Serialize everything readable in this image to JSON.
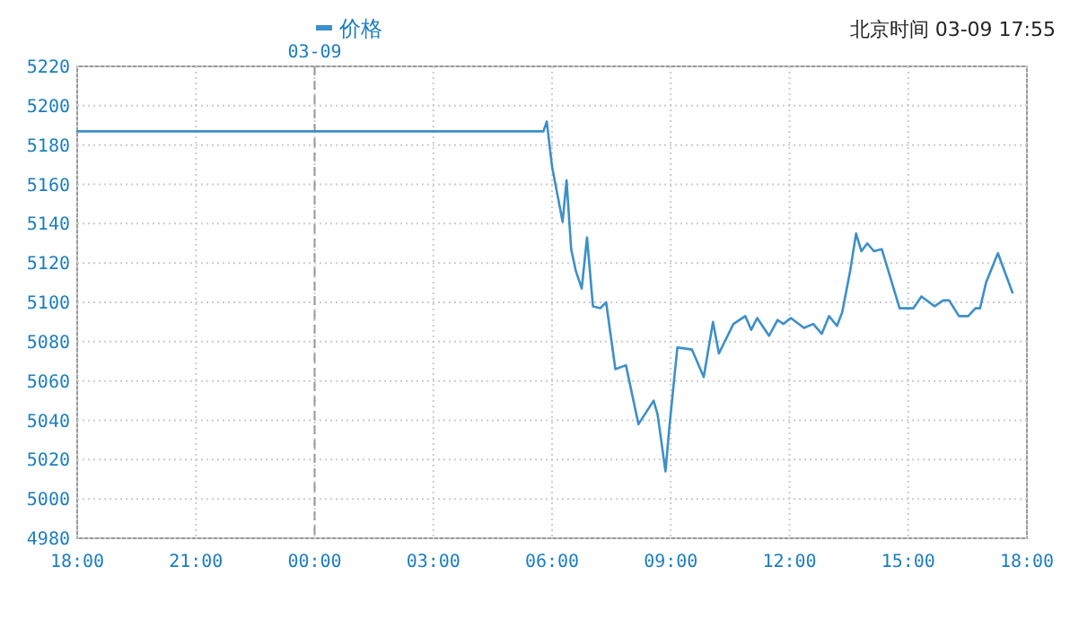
{
  "chart_data": {
    "type": "line",
    "annotations": [
      "北京时间 03-09 17:55"
    ],
    "x": [
      "--03-08T18:00",
      "--03-09T05:47",
      "--03-09T05:52",
      "--03-09T06:00",
      "--03-09T06:16",
      "--03-09T06:22",
      "--03-09T06:29",
      "--03-09T06:36",
      "--03-09T06:45",
      "--03-09T06:53",
      "--03-09T07:02",
      "--03-09T07:13",
      "--03-09T07:22",
      "--03-09T07:36",
      "--03-09T07:52",
      "--03-09T08:11",
      "--03-09T08:34",
      "--03-09T08:40",
      "--03-09T08:52",
      "--03-09T08:58",
      "--03-09T09:10",
      "--03-09T09:32",
      "--03-09T09:50",
      "--03-09T10:04",
      "--03-09T10:13",
      "--03-09T10:35",
      "--03-09T10:53",
      "--03-09T11:02",
      "--03-09T11:11",
      "--03-09T11:29",
      "--03-09T11:42",
      "--03-09T11:51",
      "--03-09T12:02",
      "--03-09T12:22",
      "--03-09T12:36",
      "--03-09T12:49",
      "--03-09T13:00",
      "--03-09T13:12",
      "--03-09T13:20",
      "--03-09T13:32",
      "--03-09T13:41",
      "--03-09T13:49",
      "--03-09T13:58",
      "--03-09T14:08",
      "--03-09T14:20",
      "--03-09T14:47",
      "--03-09T15:08",
      "--03-09T15:20",
      "--03-09T15:40",
      "--03-09T15:53",
      "--03-09T16:02",
      "--03-09T16:17",
      "--03-09T16:31",
      "--03-09T16:42",
      "--03-09T16:49",
      "--03-09T16:58",
      "--03-09T17:16",
      "--03-09T17:38"
    ],
    "series": [
      {
        "name": "价格",
        "color": "#3d8fc9",
        "values": [
          5187,
          5187,
          5192,
          5169,
          5141,
          5162,
          5127,
          5116,
          5107,
          5133,
          5098,
          5097,
          5100,
          5066,
          5068,
          5038,
          5050,
          5043,
          5014,
          5037,
          5077,
          5076,
          5062,
          5090,
          5074,
          5089,
          5093,
          5086,
          5092,
          5083,
          5091,
          5089,
          5092,
          5087,
          5089,
          5084,
          5093,
          5088,
          5095,
          5116,
          5135,
          5126,
          5130,
          5126,
          5127,
          5097,
          5097,
          5103,
          5098,
          5101,
          5101,
          5093,
          5093,
          5097,
          5097,
          5110,
          5125,
          5105
        ]
      }
    ],
    "xlim": [
      "--03-08T18:00",
      "--03-09T18:00"
    ],
    "xticks": [
      {
        "value": "--03-08T18:00",
        "label": "18:00"
      },
      {
        "value": "--03-08T21:00",
        "label": "21:00"
      },
      {
        "value": "--03-09T00:00",
        "label": "00:00"
      },
      {
        "value": "--03-09T03:00",
        "label": "03:00"
      },
      {
        "value": "--03-09T06:00",
        "label": "06:00"
      },
      {
        "value": "--03-09T09:00",
        "label": "09:00"
      },
      {
        "value": "--03-09T12:00",
        "label": "12:00"
      },
      {
        "value": "--03-09T15:00",
        "label": "15:00"
      },
      {
        "value": "--03-09T18:00",
        "label": "18:00"
      }
    ],
    "ylim": [
      4980,
      5220
    ],
    "yticks": [
      4980,
      5000,
      5020,
      5040,
      5060,
      5080,
      5100,
      5120,
      5140,
      5160,
      5180,
      5200,
      5220
    ],
    "ref_lines": [
      {
        "axis": "x",
        "value": "--03-09",
        "label": "03-09",
        "line_style": "dashed"
      }
    ],
    "grid": true,
    "legend": "top",
    "marker": "none",
    "line_style": "solid"
  }
}
